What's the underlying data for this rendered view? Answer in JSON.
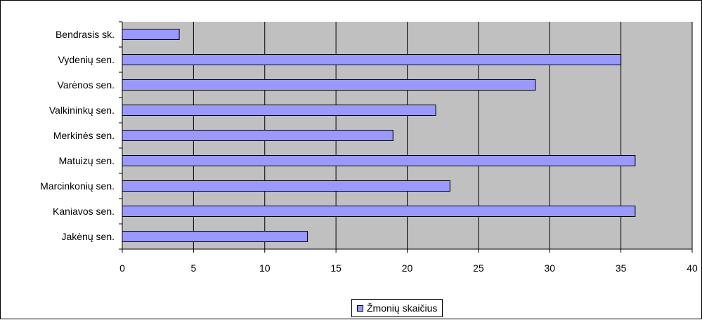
{
  "chart_data": {
    "type": "bar",
    "orientation": "horizontal",
    "categories": [
      "Jakėnų sen.",
      "Kaniavos sen.",
      "Marcinkonių sen.",
      "Matuizų sen.",
      "Merkinės sen.",
      "Valkininkų sen.",
      "Varėnos sen.",
      "Vydenių sen.",
      "Bendrasis sk."
    ],
    "series": [
      {
        "name": "Žmonių skaičius",
        "values": [
          13,
          36,
          23,
          36,
          19,
          22,
          29,
          35,
          4
        ]
      }
    ],
    "xlim": [
      0,
      40
    ],
    "xticks": [
      0,
      5,
      10,
      15,
      20,
      25,
      30,
      35,
      40
    ],
    "grid": true,
    "legend_position": "bottom",
    "colors": {
      "bar_fill": "#9999ff",
      "plot_background": "#c0c0c0",
      "gridline": "#000000"
    }
  }
}
